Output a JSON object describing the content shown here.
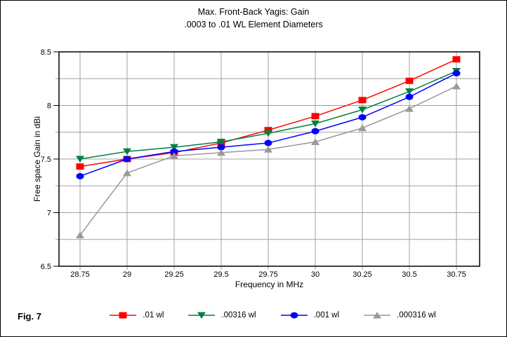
{
  "figure": {
    "label": "Fig. 7"
  },
  "colors": {
    "grid": "#a0a0a0",
    "plot_border": "#000000",
    "text": "#000000"
  },
  "chart_data": {
    "type": "line",
    "title": "Max. Front-Back Yagis: Gain",
    "subtitle": ".0003 to .01 WL Element Diameters",
    "xlabel": "Frequency in MHz",
    "ylabel": "Free space Gain in dBi",
    "x": [
      28.75,
      29,
      29.25,
      29.5,
      29.75,
      30,
      30.25,
      30.5,
      30.75
    ],
    "x_tick_labels": [
      "28.75",
      "29",
      "29.25",
      "29.5",
      "29.75",
      "30",
      "30.25",
      "30.5",
      "30.75"
    ],
    "y_tick_labels": [
      "6.5",
      "7",
      "7.5",
      "8",
      "8.5"
    ],
    "ylim": [
      6.5,
      8.5
    ],
    "y_grid_step": 0.25,
    "grid": true,
    "legend_position": "bottom",
    "series": [
      {
        "name": ".01 wl",
        "color": "#ff0000",
        "marker": "square",
        "values": [
          7.43,
          7.5,
          7.56,
          7.65,
          7.77,
          7.9,
          8.05,
          8.23,
          8.43
        ]
      },
      {
        "name": ".00316 wl",
        "color": "#008040",
        "marker": "triangle-down",
        "values": [
          7.5,
          7.57,
          7.61,
          7.66,
          7.74,
          7.83,
          7.96,
          8.13,
          8.32
        ]
      },
      {
        "name": ".001 wl",
        "color": "#0000ff",
        "marker": "circle",
        "values": [
          7.34,
          7.5,
          7.57,
          7.61,
          7.65,
          7.76,
          7.89,
          8.08,
          8.3
        ]
      },
      {
        "name": ".000316 wl",
        "color": "#999999",
        "marker": "triangle-up",
        "values": [
          6.79,
          7.37,
          7.53,
          7.56,
          7.59,
          7.66,
          7.79,
          7.97,
          8.18
        ]
      }
    ]
  }
}
